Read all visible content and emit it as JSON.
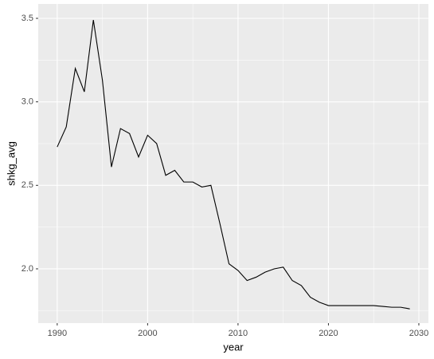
{
  "chart_data": {
    "type": "line",
    "x_label": "year",
    "y_label": "shkg_avg",
    "x": [
      1990,
      1991,
      1992,
      1993,
      1994,
      1995,
      1996,
      1997,
      1998,
      1999,
      2000,
      2001,
      2002,
      2003,
      2004,
      2005,
      2006,
      2007,
      2008,
      2009,
      2010,
      2011,
      2012,
      2013,
      2014,
      2015,
      2016,
      2017,
      2018,
      2019,
      2020,
      2021,
      2022,
      2023,
      2024,
      2025,
      2026,
      2027,
      2028,
      2029
    ],
    "values": [
      2.73,
      2.85,
      3.2,
      3.06,
      3.49,
      3.13,
      2.61,
      2.84,
      2.81,
      2.67,
      2.8,
      2.75,
      2.56,
      2.59,
      2.52,
      2.52,
      2.49,
      2.5,
      2.27,
      2.03,
      1.99,
      1.93,
      1.95,
      1.98,
      2.0,
      2.01,
      1.93,
      1.9,
      1.83,
      1.8,
      1.78,
      1.78,
      1.78,
      1.78,
      1.78,
      1.78,
      1.775,
      1.77,
      1.77,
      1.76
    ],
    "color": "#000000",
    "xlim": [
      1987.9,
      2031.06
    ],
    "ylim": [
      1.675,
      3.586
    ],
    "xticks": [
      1990,
      2000,
      2010,
      2020,
      2030
    ],
    "yticks": [
      {
        "value": 2,
        "label": "2.0"
      },
      2.5,
      {
        "value": 3,
        "label": "3.0"
      },
      3.5
    ],
    "grid": true
  }
}
